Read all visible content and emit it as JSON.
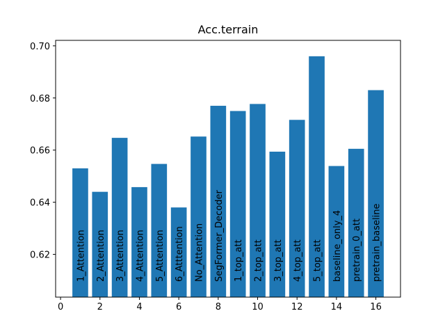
{
  "chart_data": {
    "type": "bar",
    "title": "Acc.terrain",
    "xlabel": "",
    "ylabel": "",
    "x": [
      1,
      2,
      3,
      4,
      5,
      6,
      7,
      8,
      9,
      10,
      11,
      12,
      13,
      14,
      15,
      16
    ],
    "values": [
      0.653,
      0.644,
      0.6647,
      0.6458,
      0.6547,
      0.638,
      0.6652,
      0.677,
      0.675,
      0.6777,
      0.6594,
      0.6716,
      0.696,
      0.6539,
      0.6605,
      0.683
    ],
    "bar_labels": [
      "1_Attention",
      "2_Attention",
      "3_Attention",
      "4_Attention",
      "5_Attention",
      "6_Atttention",
      "No_Attention",
      "SegFormer_Decoder",
      "1_top_att",
      "2_top_att",
      "3_top_att",
      "4_top_att",
      "5_top_att",
      "baseline_only_4",
      "pretrain_0_att",
      "pretrain_baseline"
    ],
    "xlim": [
      -0.25,
      17.25
    ],
    "ylim": [
      0.6036,
      0.7021
    ],
    "xticks": [
      0,
      2,
      4,
      6,
      8,
      10,
      12,
      14,
      16
    ],
    "xtick_labels": [
      "0",
      "2",
      "4",
      "6",
      "8",
      "10",
      "12",
      "14",
      "16"
    ],
    "yticks": [
      0.62,
      0.64,
      0.66,
      0.68,
      0.7
    ],
    "ytick_labels": [
      "0.62",
      "0.64",
      "0.66",
      "0.68",
      "0.70"
    ],
    "bar_color": "#1f77b4",
    "grid": false,
    "legend": "none"
  }
}
